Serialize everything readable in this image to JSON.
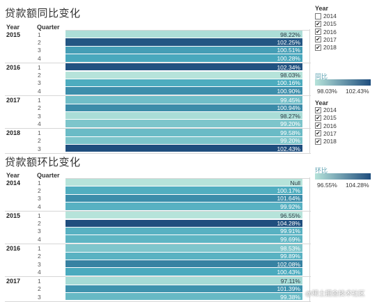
{
  "chart_data": [
    {
      "type": "heatmap",
      "title": "贷款额同比变化",
      "row_headers": [
        "Year",
        "Quarter"
      ],
      "color_legend": {
        "title": "同比",
        "min_label": "98.03%",
        "max_label": "102.43%",
        "min": 98.03,
        "max": 102.43
      },
      "groups": [
        {
          "year": "2015",
          "rows": [
            {
              "quarter": "1",
              "value": 98.22,
              "label": "98.22%"
            },
            {
              "quarter": "2",
              "value": 102.25,
              "label": "102.25%"
            },
            {
              "quarter": "3",
              "value": 100.51,
              "label": "100.51%"
            },
            {
              "quarter": "4",
              "value": 100.28,
              "label": "100.28%"
            }
          ]
        },
        {
          "year": "2016",
          "rows": [
            {
              "quarter": "1",
              "value": 102.34,
              "label": "102.34%"
            },
            {
              "quarter": "2",
              "value": 98.03,
              "label": "98.03%"
            },
            {
              "quarter": "3",
              "value": 100.16,
              "label": "100.16%"
            },
            {
              "quarter": "4",
              "value": 100.9,
              "label": "100.90%"
            }
          ]
        },
        {
          "year": "2017",
          "rows": [
            {
              "quarter": "1",
              "value": 99.45,
              "label": "99.45%"
            },
            {
              "quarter": "2",
              "value": 100.94,
              "label": "100.94%"
            },
            {
              "quarter": "3",
              "value": 98.27,
              "label": "98.27%"
            },
            {
              "quarter": "4",
              "value": 99.2,
              "label": "99.20%"
            }
          ]
        },
        {
          "year": "2018",
          "rows": [
            {
              "quarter": "1",
              "value": 99.58,
              "label": "99.58%"
            },
            {
              "quarter": "2",
              "value": 99.2,
              "label": "99.20%"
            },
            {
              "quarter": "3",
              "value": 102.43,
              "label": "102.43%"
            }
          ]
        }
      ]
    },
    {
      "type": "heatmap",
      "title": "贷款额环比变化",
      "row_headers": [
        "Year",
        "Quarter"
      ],
      "color_legend": {
        "title": "环比",
        "min_label": "96.55%",
        "max_label": "104.28%",
        "min": 96.55,
        "max": 104.28
      },
      "groups": [
        {
          "year": "2014",
          "rows": [
            {
              "quarter": "1",
              "value": null,
              "label": "Null"
            },
            {
              "quarter": "2",
              "value": 100.17,
              "label": "100.17%"
            },
            {
              "quarter": "3",
              "value": 101.64,
              "label": "101.64%"
            },
            {
              "quarter": "4",
              "value": 99.92,
              "label": "99.92%"
            }
          ]
        },
        {
          "year": "2015",
          "rows": [
            {
              "quarter": "1",
              "value": 96.55,
              "label": "96.55%"
            },
            {
              "quarter": "2",
              "value": 104.28,
              "label": "104.28%"
            },
            {
              "quarter": "3",
              "value": 99.91,
              "label": "99.91%"
            },
            {
              "quarter": "4",
              "value": 99.69,
              "label": "99.69%"
            }
          ]
        },
        {
          "year": "2016",
          "rows": [
            {
              "quarter": "1",
              "value": 98.53,
              "label": "98.53%"
            },
            {
              "quarter": "2",
              "value": 99.89,
              "label": "99.89%"
            },
            {
              "quarter": "3",
              "value": 102.08,
              "label": "102.08%"
            },
            {
              "quarter": "4",
              "value": 100.43,
              "label": "100.43%"
            }
          ]
        },
        {
          "year": "2017",
          "rows": [
            {
              "quarter": "1",
              "value": 97.11,
              "label": "97.11%"
            },
            {
              "quarter": "2",
              "value": 101.39,
              "label": "101.39%"
            },
            {
              "quarter": "3",
              "value": 99.38,
              "label": "99.38%"
            }
          ]
        }
      ]
    }
  ],
  "filters": [
    {
      "title": "Year",
      "items": [
        {
          "label": "2014",
          "checked": false
        },
        {
          "label": "2015",
          "checked": true
        },
        {
          "label": "2016",
          "checked": true
        },
        {
          "label": "2017",
          "checked": true
        },
        {
          "label": "2018",
          "checked": true
        }
      ]
    },
    {
      "title": "Year",
      "items": [
        {
          "label": "2014",
          "checked": true
        },
        {
          "label": "2015",
          "checked": true
        },
        {
          "label": "2016",
          "checked": true
        },
        {
          "label": "2017",
          "checked": true
        },
        {
          "label": "2018",
          "checked": true
        }
      ]
    }
  ],
  "watermark": "@稀土掘金技术社区",
  "colors": {
    "ramp_light": "#b6e3da",
    "ramp_dark": "#1f4e7e"
  }
}
